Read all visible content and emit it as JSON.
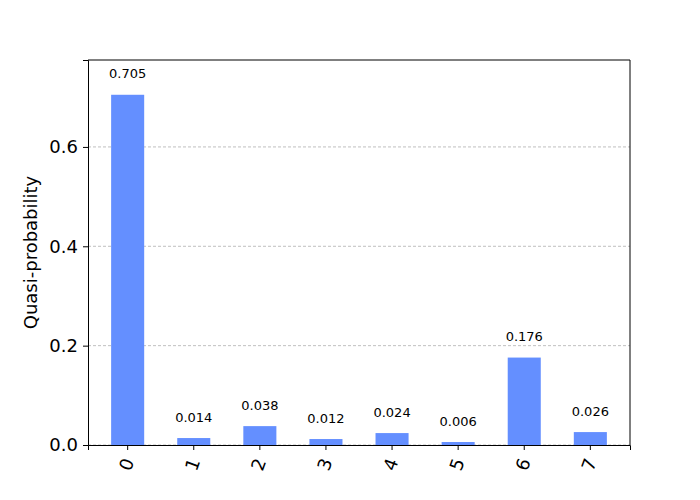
{
  "chart_data": {
    "type": "bar",
    "y_label": "Quasi-probability",
    "categories": [
      "0",
      "1",
      "2",
      "3",
      "4",
      "5",
      "6",
      "7"
    ],
    "values": [
      0.705,
      0.014,
      0.038,
      0.012,
      0.024,
      0.006,
      0.176,
      0.026
    ],
    "color": "#648fff",
    "ylim": [
      0,
      0.775
    ],
    "yticks": [
      {
        "value": 0,
        "label": "0.0"
      },
      0.2,
      0.4,
      0.6
    ],
    "grid": true,
    "data_labels": true
  }
}
